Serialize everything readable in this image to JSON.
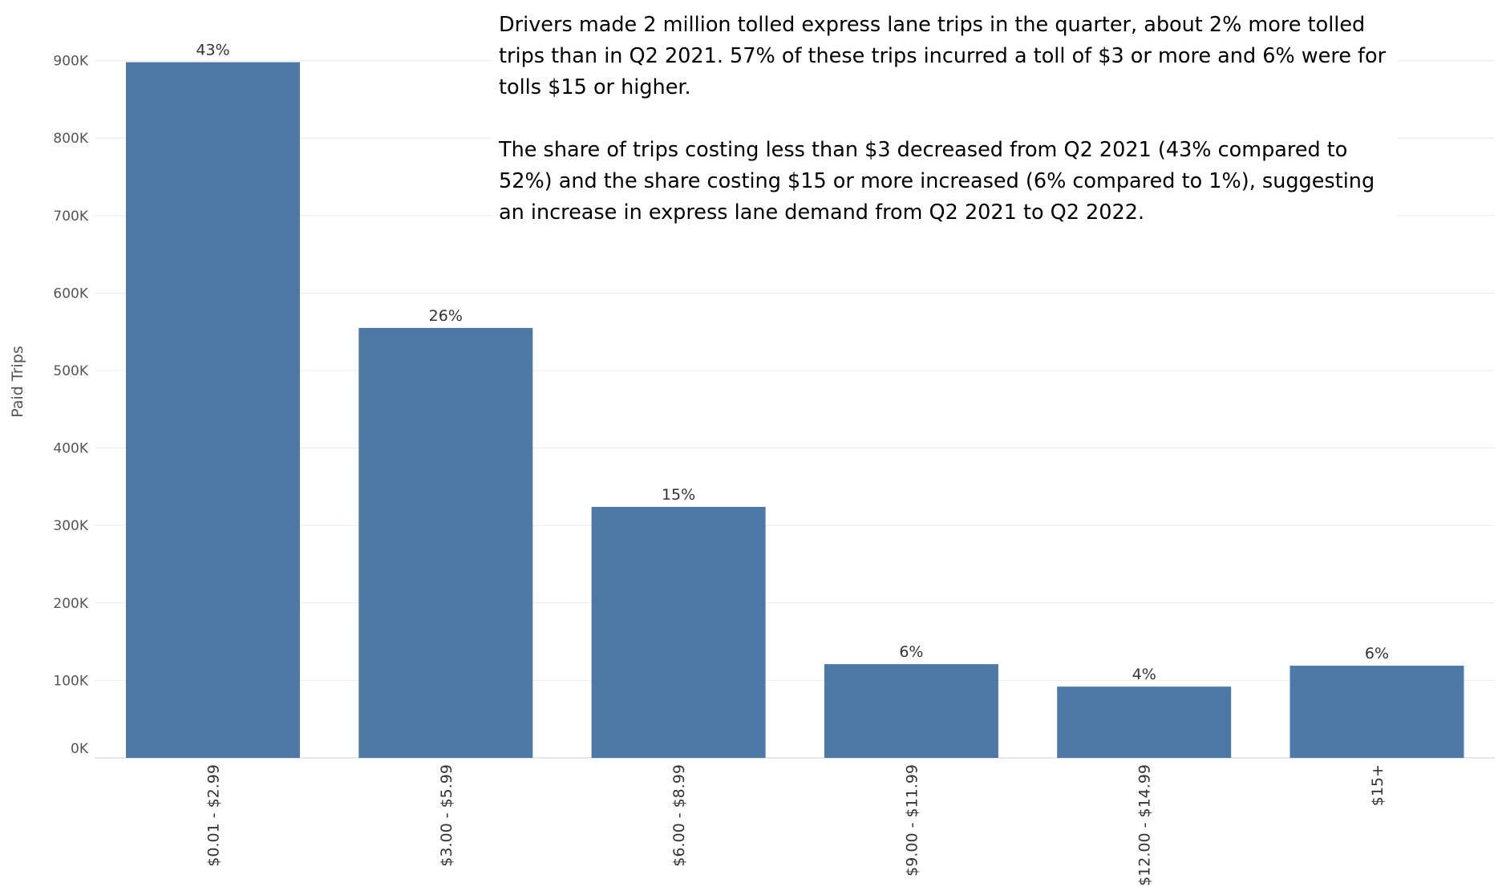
{
  "chart_data": {
    "type": "bar",
    "ylabel": "Paid Trips",
    "xlabel": "",
    "ylim": [
      0,
      960000
    ],
    "y_ticks": [
      0,
      100000,
      200000,
      300000,
      400000,
      500000,
      600000,
      700000,
      800000,
      900000
    ],
    "y_tick_labels": [
      "0K",
      "100K",
      "200K",
      "300K",
      "400K",
      "500K",
      "600K",
      "700K",
      "800K",
      "900K"
    ],
    "categories": [
      "$0.01 - $2.99",
      "$3.00 - $5.99",
      "$6.00 - $8.99",
      "$9.00 - $11.99",
      "$12.00 - $14.99",
      "$15+"
    ],
    "values": [
      898000,
      555000,
      324000,
      121000,
      92000,
      119000
    ],
    "data_labels": [
      "43%",
      "26%",
      "15%",
      "6%",
      "4%",
      "6%"
    ],
    "bar_color": "#4e79a7",
    "grid": true,
    "annotation": [
      "Drivers made 2 million tolled express lane trips in the quarter, about 2% more tolled trips than in Q2 2021. 57% of these trips incurred a toll of $3 or more and 6% were for tolls $15 or higher.",
      "The share of trips costing less than $3 decreased from Q2 2021 (43% compared to 52%) and the share costing $15 or more increased (6% compared to 1%), suggesting an increase in express lane demand from Q2 2021 to Q2 2022."
    ]
  }
}
